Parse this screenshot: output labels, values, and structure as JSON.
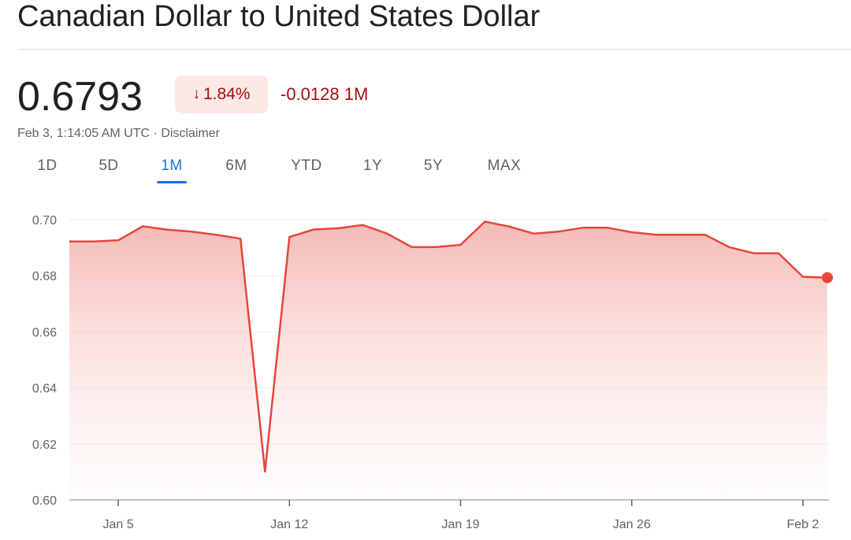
{
  "header": {
    "title": "Canadian Dollar to United States Dollar"
  },
  "quote": {
    "price": "0.6793",
    "percent_change": "1.84%",
    "direction_icon": "arrow-down-icon",
    "abs_change": "-0.0128 1M",
    "timestamp": "Feb 3, 1:14:05 AM UTC",
    "separator": "·",
    "disclaimer": "Disclaimer"
  },
  "tabs": [
    {
      "label": "1D",
      "active": false
    },
    {
      "label": "5D",
      "active": false
    },
    {
      "label": "1M",
      "active": true
    },
    {
      "label": "6M",
      "active": false
    },
    {
      "label": "YTD",
      "active": false
    },
    {
      "label": "1Y",
      "active": false
    },
    {
      "label": "5Y",
      "active": false
    },
    {
      "label": "MAX",
      "active": false
    }
  ],
  "colors": {
    "line": "#e8453c",
    "fill_top": "#f4b6b1",
    "grid": "#e8eaed",
    "axis": "#5f6368",
    "negative": "#a50e0e",
    "accent": "#1a73e8"
  },
  "chart_data": {
    "type": "area",
    "title": "",
    "xlabel": "",
    "ylabel": "",
    "ylim": [
      0.6,
      0.7
    ],
    "yticks": [
      "0.70",
      "0.68",
      "0.66",
      "0.64",
      "0.62",
      "0.60"
    ],
    "ytick_values": [
      0.7,
      0.68,
      0.66,
      0.64,
      0.62,
      0.6
    ],
    "xticks": [
      {
        "label": "Jan 5",
        "day": 5
      },
      {
        "label": "Jan 12",
        "day": 12
      },
      {
        "label": "Jan 19",
        "day": 19
      },
      {
        "label": "Jan 26",
        "day": 26
      },
      {
        "label": "Feb 2",
        "day": 33
      }
    ],
    "grid": true,
    "series": [
      {
        "x": [
          "Jan 3",
          "Jan 4",
          "Jan 5",
          "Jan 6",
          "Jan 7",
          "Jan 8",
          "Jan 9",
          "Jan 10",
          "Jan 11",
          "Jan 12",
          "Jan 13",
          "Jan 14",
          "Jan 15",
          "Jan 16",
          "Jan 17",
          "Jan 18",
          "Jan 19",
          "Jan 20",
          "Jan 21",
          "Jan 22",
          "Jan 23",
          "Jan 24",
          "Jan 25",
          "Jan 26",
          "Jan 27",
          "Jan 28",
          "Jan 29",
          "Jan 30",
          "Jan 31",
          "Feb 1",
          "Feb 2",
          "Feb 3"
        ],
        "x_day": [
          3,
          4,
          5,
          6,
          7,
          8,
          9,
          10,
          11,
          12,
          13,
          14,
          15,
          16,
          17,
          18,
          19,
          20,
          21,
          22,
          23,
          24,
          25,
          26,
          27,
          28,
          29,
          30,
          31,
          32,
          33,
          34
        ],
        "values": [
          0.6922,
          0.6922,
          0.6926,
          0.6976,
          0.6964,
          0.6957,
          0.6946,
          0.6932,
          0.6101,
          0.6938,
          0.6965,
          0.6969,
          0.6981,
          0.695,
          0.6902,
          0.6902,
          0.691,
          0.6993,
          0.6975,
          0.695,
          0.6957,
          0.6971,
          0.6971,
          0.6955,
          0.6946,
          0.6946,
          0.6946,
          0.6901,
          0.688,
          0.688,
          0.6796,
          0.6793
        ]
      }
    ]
  }
}
